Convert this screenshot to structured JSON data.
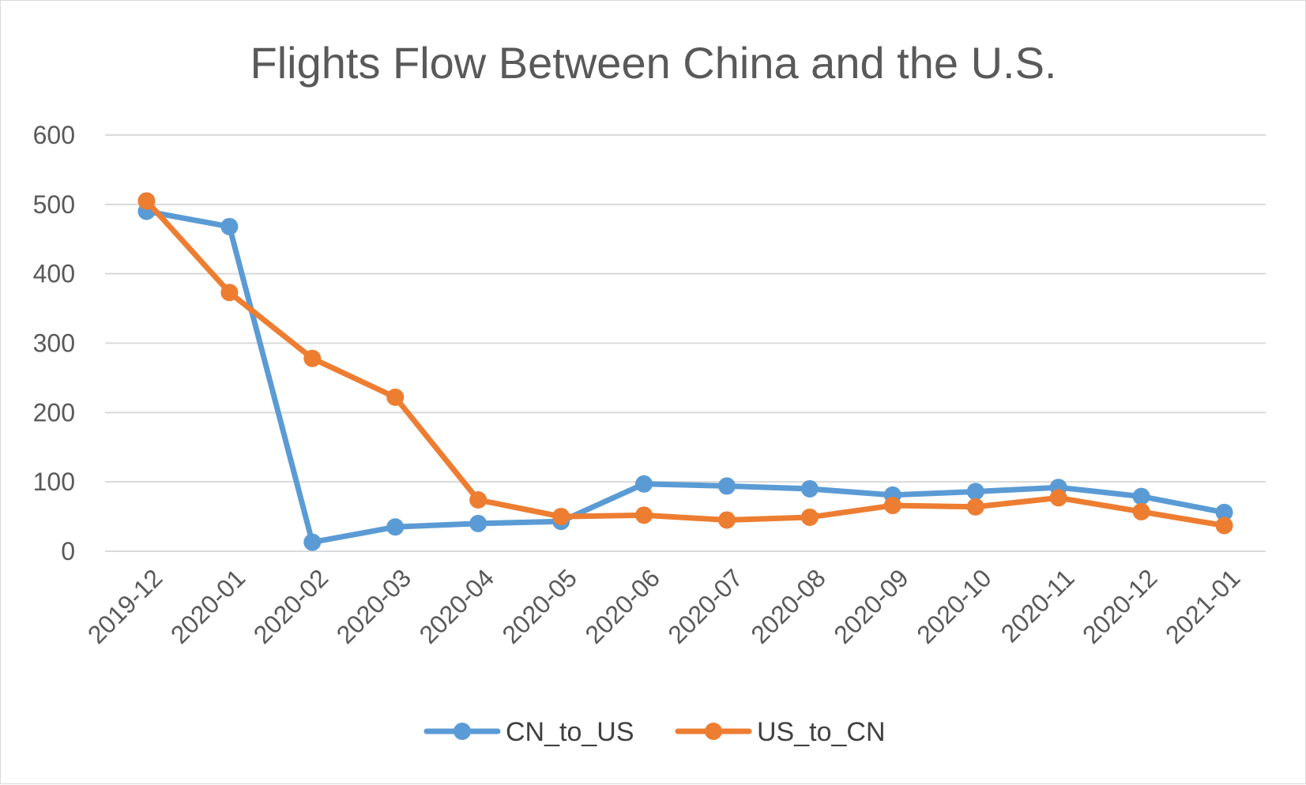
{
  "chart_data": {
    "type": "line",
    "title": "Flights Flow Between China and the U.S.",
    "xlabel": "",
    "ylabel": "",
    "categories": [
      "2019-12",
      "2020-01",
      "2020-02",
      "2020-03",
      "2020-04",
      "2020-05",
      "2020-06",
      "2020-07",
      "2020-08",
      "2020-09",
      "2020-10",
      "2020-11",
      "2020-12",
      "2021-01"
    ],
    "ylim": [
      0,
      600
    ],
    "yticks": [
      "0",
      "100",
      "200",
      "300",
      "400",
      "500",
      "600"
    ],
    "grid": true,
    "legend_position": "bottom",
    "series": [
      {
        "name": "CN_to_US",
        "color": "#5b9bd5",
        "values": [
          490,
          468,
          13,
          35,
          40,
          43,
          97,
          94,
          90,
          81,
          86,
          92,
          79,
          56
        ]
      },
      {
        "name": "US_to_CN",
        "color": "#ed7d31",
        "values": [
          505,
          373,
          278,
          222,
          74,
          50,
          52,
          45,
          49,
          66,
          64,
          77,
          57,
          37
        ]
      }
    ]
  }
}
